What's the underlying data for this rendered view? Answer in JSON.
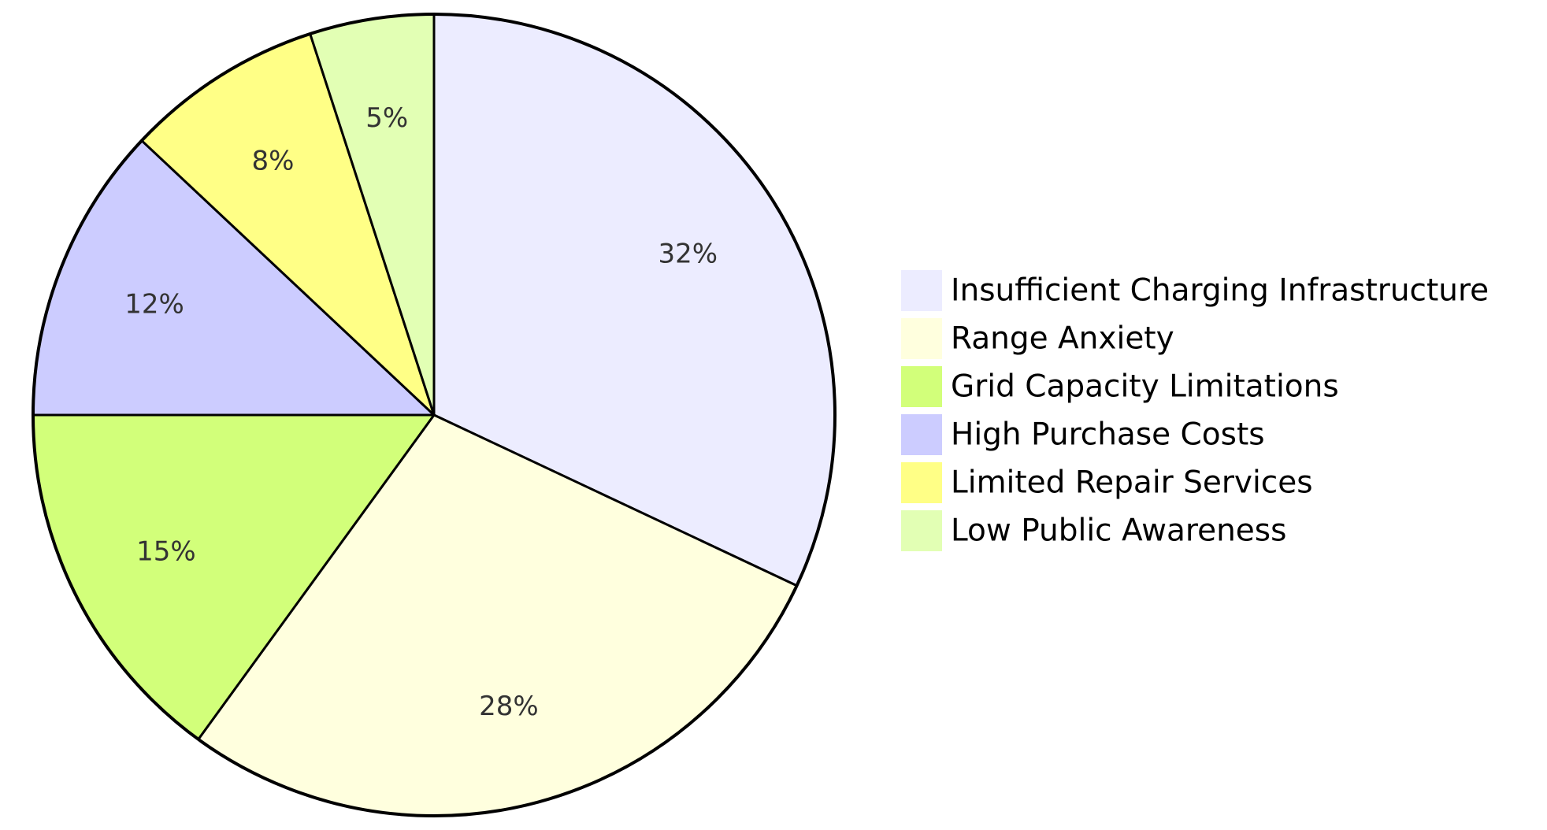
{
  "chart_data": {
    "type": "pie",
    "title": "",
    "legend_position": "right",
    "slices": [
      {
        "label": "Insufficient Charging Infrastructure",
        "value": 32,
        "display": "32%",
        "color": "#ececff"
      },
      {
        "label": "Range Anxiety",
        "value": 28,
        "display": "28%",
        "color": "#ffffde"
      },
      {
        "label": "Grid Capacity Limitations",
        "value": 15,
        "display": "15%",
        "color": "#d2ff7a"
      },
      {
        "label": "High Purchase Costs",
        "value": 12,
        "display": "12%",
        "color": "#ccccff"
      },
      {
        "label": "Limited Repair Services",
        "value": 8,
        "display": "8%",
        "color": "#ffff86"
      },
      {
        "label": "Low Public Awareness",
        "value": 5,
        "display": "5%",
        "color": "#e2ffb4"
      }
    ]
  }
}
